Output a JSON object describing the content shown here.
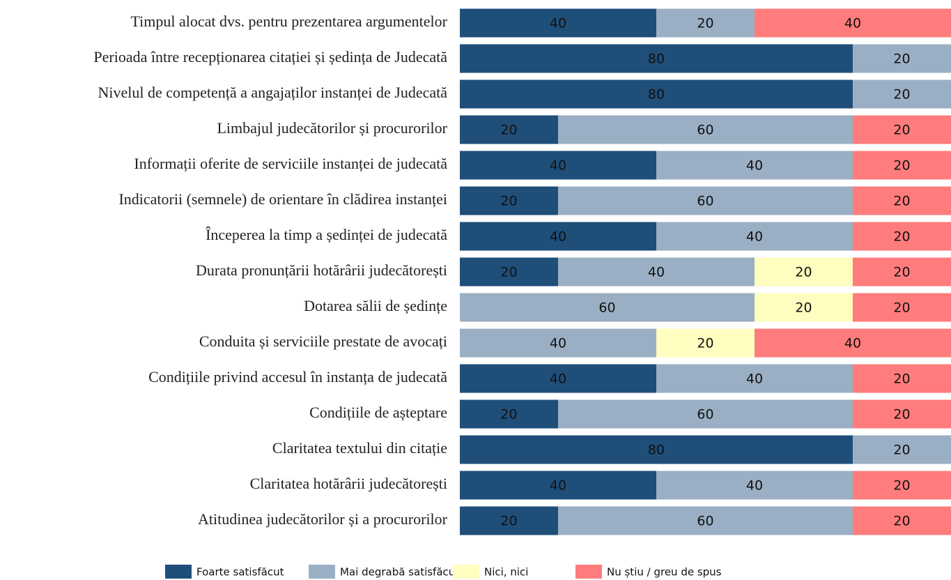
{
  "chart_data": {
    "type": "stacked_bar_horizontal",
    "categories": [
      "Timpul alocat dvs. pentru prezentarea argumentelor",
      "Perioada între recepționarea citației și ședința de Judecată",
      "Nivelul de competență a angajaților instanței de Judecată",
      "Limbajul judecătorilor și procurorilor",
      "Informații oferite de serviciile instanței de judecată",
      "Indicatorii (semnele) de orientare în clădirea instanței",
      "Începerea la timp a ședinței de judecată",
      "Durata pronunțării hotărârii judecătorești",
      "Dotarea sălii de ședințe",
      "Conduita și serviciile prestate de avocați",
      "Condițiile privind accesul în instanța de judecată",
      "Condițiile de așteptare",
      "Claritatea textului din citație",
      "Claritatea hotărârii judecătorești",
      "Atitudinea judecătorilor și a procurorilor"
    ],
    "series": [
      {
        "name": "Foarte satisfăcut",
        "color": "#1f4e79",
        "values": [
          40,
          80,
          80,
          20,
          40,
          20,
          40,
          20,
          null,
          null,
          40,
          20,
          80,
          40,
          20
        ]
      },
      {
        "name": "Mai degrabă satisfăcut",
        "color": "#9bafc4",
        "values": [
          20,
          20,
          20,
          60,
          40,
          60,
          40,
          40,
          60,
          40,
          40,
          60,
          20,
          40,
          60
        ]
      },
      {
        "name": "Nici, nici",
        "color": "#fffdbf",
        "values": [
          null,
          null,
          null,
          null,
          null,
          null,
          null,
          20,
          20,
          20,
          null,
          null,
          null,
          null,
          null
        ]
      },
      {
        "name": "Nu știu / greu de spus",
        "color": "#ff7c7c",
        "values": [
          40,
          null,
          null,
          20,
          20,
          20,
          20,
          20,
          20,
          40,
          20,
          20,
          null,
          20,
          20
        ]
      }
    ],
    "legend": "bottom"
  }
}
